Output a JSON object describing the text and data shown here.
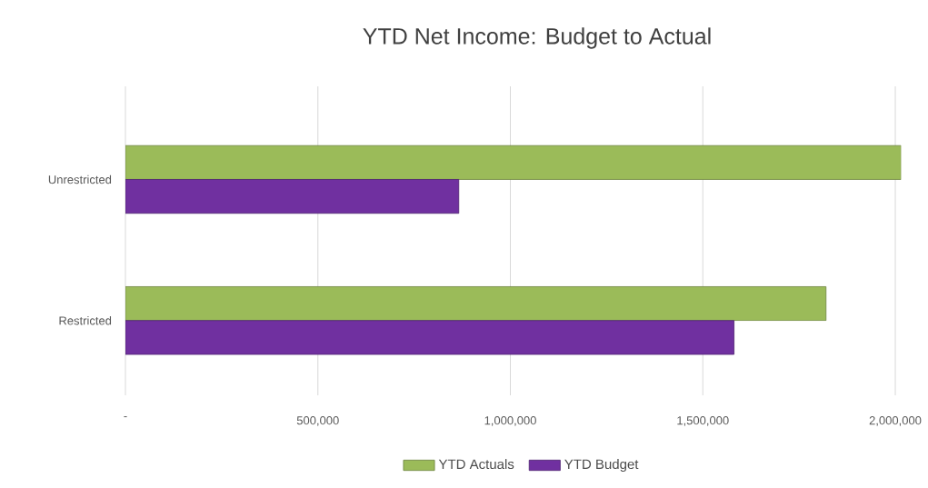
{
  "chart_data": {
    "type": "bar",
    "orientation": "horizontal",
    "title": "YTD Net Income: Budget to Actual",
    "categories": [
      "Unrestricted",
      "Restricted"
    ],
    "series": [
      {
        "name": "YTD Actuals",
        "color": "#9bbb59",
        "values": [
          2015000,
          1820000
        ]
      },
      {
        "name": "YTD Budget",
        "color": "#7030a0",
        "values": [
          866000,
          1581000
        ]
      }
    ],
    "xlim": [
      0,
      2015000
    ],
    "xticks": [
      {
        "value": 0,
        "label": "-"
      },
      {
        "value": 500000,
        "label": "500,000"
      },
      {
        "value": 1000000,
        "label": "1,000,000"
      },
      {
        "value": 1500000,
        "label": "1,500,000"
      },
      {
        "value": 2000000,
        "label": "2,000,000"
      }
    ],
    "grid": "x",
    "legend": "bottom"
  }
}
